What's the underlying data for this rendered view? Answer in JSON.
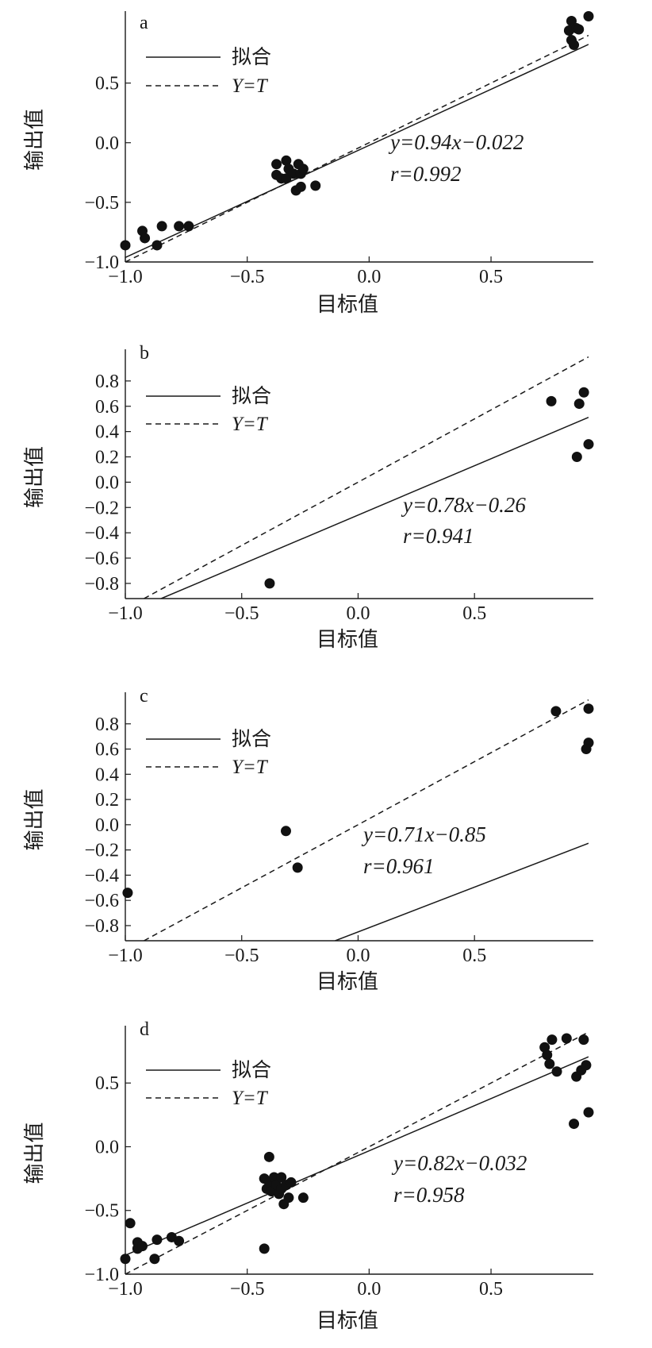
{
  "chart_data": [
    {
      "type": "scatter",
      "panel_label": "a",
      "xlabel": "目标值",
      "ylabel": "输出值",
      "xlim": [
        -1.0,
        0.9
      ],
      "ylim": [
        -1.0,
        1.05
      ],
      "xticks": [
        -1.0,
        -0.5,
        0.0,
        0.5
      ],
      "xtick_labels": [
        "−1.0",
        "−0.5",
        "0.0",
        "0.5"
      ],
      "yticks": [
        -1.0,
        -0.5,
        0.0,
        0.5
      ],
      "ytick_labels": [
        "−1.0",
        "−0.5",
        "0.0",
        "0.5"
      ],
      "legend": [
        {
          "label": "拟合",
          "style": "solid"
        },
        {
          "label": "Y=T",
          "style": "dashed"
        }
      ],
      "legend_position": "top-left",
      "fit": {
        "slope": 0.94,
        "intercept": -0.022
      },
      "equation_text": "y=0.94x−0.022",
      "r_text": "r=0.992",
      "annotation_position": "right",
      "points": [
        [
          -1.0,
          -0.86
        ],
        [
          -0.93,
          -0.74
        ],
        [
          -0.92,
          -0.8
        ],
        [
          -0.87,
          -0.86
        ],
        [
          -0.85,
          -0.7
        ],
        [
          -0.78,
          -0.7
        ],
        [
          -0.74,
          -0.7
        ],
        [
          -0.38,
          -0.18
        ],
        [
          -0.38,
          -0.27
        ],
        [
          -0.36,
          -0.3
        ],
        [
          -0.34,
          -0.15
        ],
        [
          -0.34,
          -0.3
        ],
        [
          -0.33,
          -0.22
        ],
        [
          -0.31,
          -0.26
        ],
        [
          -0.3,
          -0.4
        ],
        [
          -0.29,
          -0.18
        ],
        [
          -0.28,
          -0.26
        ],
        [
          -0.27,
          -0.22
        ],
        [
          -0.28,
          -0.37
        ],
        [
          -0.22,
          -0.36
        ],
        [
          0.82,
          0.94
        ],
        [
          0.83,
          1.02
        ],
        [
          0.83,
          0.86
        ],
        [
          0.84,
          0.82
        ],
        [
          0.85,
          0.96
        ],
        [
          0.86,
          0.95
        ],
        [
          0.9,
          1.06
        ]
      ]
    },
    {
      "type": "scatter",
      "panel_label": "b",
      "xlabel": "目标值",
      "ylabel": "输出值",
      "xlim": [
        -1.0,
        0.99
      ],
      "ylim": [
        -0.92,
        1.0
      ],
      "xticks": [
        -1.0,
        -0.5,
        0.0,
        0.5
      ],
      "xtick_labels": [
        "−1.0",
        "−0.5",
        "0.0",
        "0.5"
      ],
      "yticks": [
        -0.8,
        -0.6,
        -0.4,
        -0.2,
        0.0,
        0.2,
        0.4,
        0.6,
        0.8
      ],
      "ytick_labels": [
        "−0.8",
        "−0.6",
        "−0.4",
        "−0.2",
        "0.0",
        "0.2",
        "0.4",
        "0.6",
        "0.8"
      ],
      "legend": [
        {
          "label": "拟合",
          "style": "solid"
        },
        {
          "label": "Y=T",
          "style": "dashed"
        }
      ],
      "legend_position": "top-left",
      "fit": {
        "slope": 0.78,
        "intercept": -0.26
      },
      "equation_text": "y=0.78x−0.26",
      "r_text": "r=0.941",
      "annotation_position": "right",
      "points": [
        [
          -0.38,
          -0.8
        ],
        [
          0.83,
          0.64
        ],
        [
          0.95,
          0.62
        ],
        [
          0.97,
          0.71
        ],
        [
          0.99,
          0.3
        ],
        [
          0.94,
          0.2
        ]
      ]
    },
    {
      "type": "scatter",
      "panel_label": "c",
      "xlabel": "目标值",
      "ylabel": "输出值",
      "xlim": [
        -1.0,
        0.99
      ],
      "ylim": [
        -0.92,
        1.0
      ],
      "xticks": [
        -1.0,
        -0.5,
        0.0,
        0.5
      ],
      "xtick_labels": [
        "−1.0",
        "−0.5",
        "0.0",
        "0.5"
      ],
      "yticks": [
        -0.8,
        -0.6,
        -0.4,
        -0.2,
        0.0,
        0.2,
        0.4,
        0.6,
        0.8
      ],
      "ytick_labels": [
        "−0.8",
        "−0.6",
        "−0.4",
        "−0.2",
        "0.0",
        "0.2",
        "0.4",
        "0.6",
        "0.8"
      ],
      "legend": [
        {
          "label": "拟合",
          "style": "solid"
        },
        {
          "label": "Y=T",
          "style": "dashed"
        }
      ],
      "legend_position": "top-left",
      "fit": {
        "slope": 0.71,
        "intercept": -0.85
      },
      "equation_text": "y=0.71x−0.85",
      "r_text": "r=0.961",
      "annotation_position": "right",
      "points": [
        [
          -0.99,
          -0.54
        ],
        [
          -0.31,
          -0.05
        ],
        [
          -0.26,
          -0.34
        ],
        [
          0.85,
          0.9
        ],
        [
          0.99,
          0.92
        ],
        [
          0.99,
          0.65
        ],
        [
          0.98,
          0.6
        ]
      ]
    },
    {
      "type": "scatter",
      "panel_label": "d",
      "xlabel": "目标值",
      "ylabel": "输出值",
      "xlim": [
        -1.0,
        0.9
      ],
      "ylim": [
        -1.0,
        0.9
      ],
      "xticks": [
        -1.0,
        -0.5,
        0.0,
        0.5
      ],
      "xtick_labels": [
        "−1.0",
        "−0.5",
        "0.0",
        "0.5"
      ],
      "yticks": [
        -1.0,
        -0.5,
        0.0,
        0.5
      ],
      "ytick_labels": [
        "−1.0",
        "−0.5",
        "0.0",
        "0.5"
      ],
      "legend": [
        {
          "label": "拟合",
          "style": "solid"
        },
        {
          "label": "Y=T",
          "style": "dashed"
        }
      ],
      "legend_position": "top-left",
      "fit": {
        "slope": 0.82,
        "intercept": -0.032
      },
      "equation_text": "y=0.82x−0.032",
      "r_text": "r=0.958",
      "annotation_position": "right",
      "points": [
        [
          -1.0,
          -0.88
        ],
        [
          -0.98,
          -0.6
        ],
        [
          -0.95,
          -0.8
        ],
        [
          -0.95,
          -0.75
        ],
        [
          -0.93,
          -0.78
        ],
        [
          -0.88,
          -0.88
        ],
        [
          -0.87,
          -0.73
        ],
        [
          -0.81,
          -0.71
        ],
        [
          -0.78,
          -0.74
        ],
        [
          -0.43,
          -0.8
        ],
        [
          -0.43,
          -0.25
        ],
        [
          -0.42,
          -0.33
        ],
        [
          -0.41,
          -0.08
        ],
        [
          -0.41,
          -0.28
        ],
        [
          -0.4,
          -0.35
        ],
        [
          -0.39,
          -0.24
        ],
        [
          -0.38,
          -0.3
        ],
        [
          -0.37,
          -0.37
        ],
        [
          -0.36,
          -0.24
        ],
        [
          -0.36,
          -0.33
        ],
        [
          -0.35,
          -0.45
        ],
        [
          -0.34,
          -0.3
        ],
        [
          -0.33,
          -0.4
        ],
        [
          -0.32,
          -0.28
        ],
        [
          -0.27,
          -0.4
        ],
        [
          0.72,
          0.78
        ],
        [
          0.73,
          0.72
        ],
        [
          0.74,
          0.65
        ],
        [
          0.75,
          0.84
        ],
        [
          0.77,
          0.59
        ],
        [
          0.81,
          0.85
        ],
        [
          0.84,
          0.18
        ],
        [
          0.85,
          0.55
        ],
        [
          0.87,
          0.6
        ],
        [
          0.88,
          0.84
        ],
        [
          0.89,
          0.64
        ],
        [
          0.9,
          0.27
        ]
      ]
    }
  ]
}
